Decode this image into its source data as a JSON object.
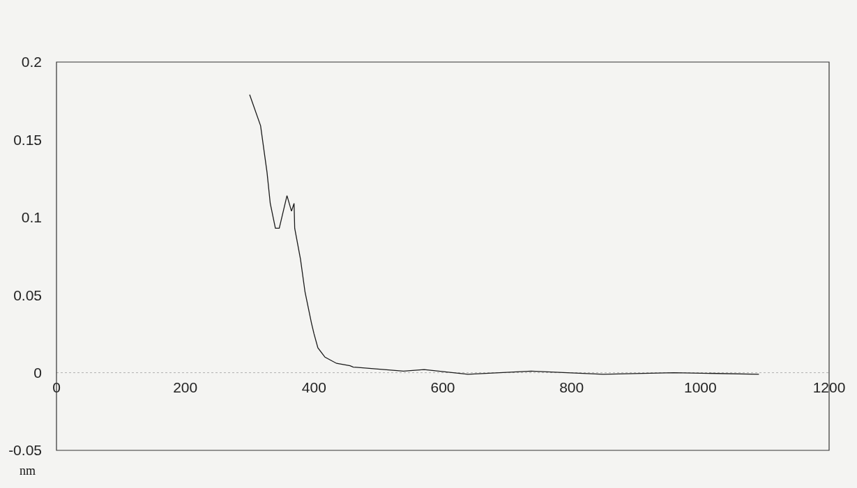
{
  "chart_data": {
    "type": "line",
    "xlabel": "nm",
    "x": [
      300,
      317,
      327,
      332,
      340,
      346,
      358,
      365,
      369,
      370,
      379,
      386,
      396,
      400,
      406,
      417,
      435,
      456,
      461,
      539,
      571,
      639,
      737,
      849,
      959,
      1091
    ],
    "values": [
      0.179,
      0.159,
      0.129,
      0.109,
      0.093,
      0.093,
      0.114,
      0.104,
      0.109,
      0.093,
      0.073,
      0.052,
      0.032,
      0.025,
      0.016,
      0.01,
      0.006,
      0.0045,
      0.0036,
      0.001,
      0.002,
      -0.001,
      0.001,
      -0.001,
      0,
      -0.001
    ],
    "color": "#1a1a1a",
    "line_style": "solid",
    "marker": "none",
    "grid": false,
    "legend": false,
    "xlim": [
      0,
      1200
    ],
    "xticks": [
      0,
      200,
      400,
      600,
      800,
      1000,
      1200
    ],
    "ylim": [
      -0.05,
      0.2
    ],
    "yticks": [
      0.2,
      0.15,
      0.1,
      0.05,
      0,
      -0.05
    ],
    "ref_lines": [
      {
        "axis": "y",
        "value": 0,
        "color": "#b0b0b0",
        "line_style": "dotted"
      }
    ]
  }
}
